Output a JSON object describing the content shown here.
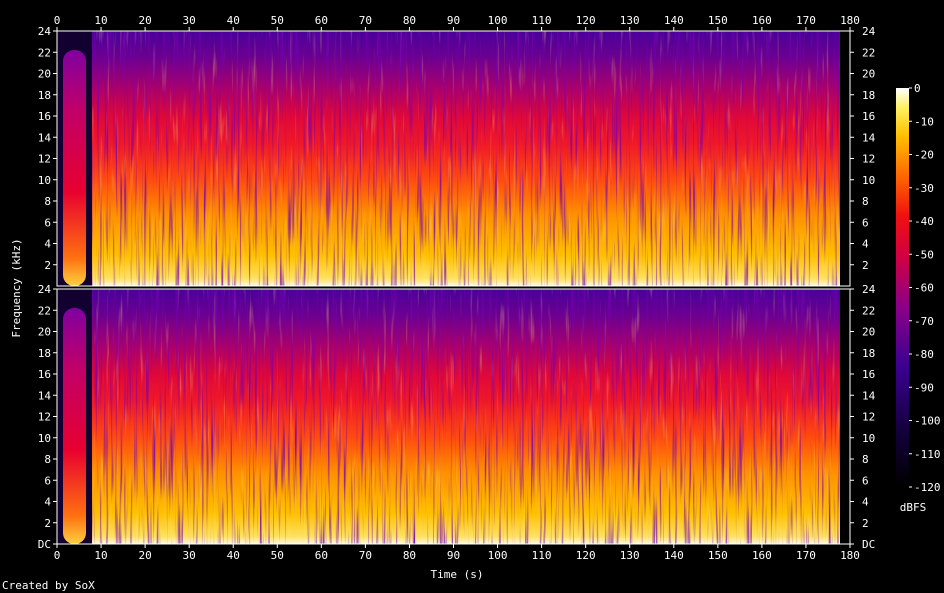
{
  "chart_data": {
    "type": "heatmap",
    "title": "",
    "xlabel": "Time (s)",
    "ylabel": "Frequency (kHz)",
    "xlim": [
      0,
      180
    ],
    "x_ticks": [
      0,
      10,
      20,
      30,
      40,
      50,
      60,
      70,
      80,
      90,
      100,
      110,
      120,
      130,
      140,
      150,
      160,
      170,
      180
    ],
    "channels": [
      {
        "name": "",
        "ylim": [
          0,
          24
        ],
        "y_ticks": [
          {
            "value": 2,
            "label": "2"
          },
          {
            "value": 4,
            "label": "4"
          },
          {
            "value": 6,
            "label": "6"
          },
          {
            "value": 8,
            "label": "8"
          },
          {
            "value": 10,
            "label": "10"
          },
          {
            "value": 12,
            "label": "12"
          },
          {
            "value": 14,
            "label": "14"
          },
          {
            "value": 16,
            "label": "16"
          },
          {
            "value": 18,
            "label": "18"
          },
          {
            "value": 20,
            "label": "20"
          },
          {
            "value": 22,
            "label": "22"
          },
          {
            "value": 24,
            "label": "24"
          }
        ]
      },
      {
        "name": "",
        "ylim": [
          0,
          24
        ],
        "y_ticks": [
          {
            "value": 0,
            "label": "DC"
          },
          {
            "value": 2,
            "label": "2"
          },
          {
            "value": 4,
            "label": "4"
          },
          {
            "value": 6,
            "label": "6"
          },
          {
            "value": 8,
            "label": "8"
          },
          {
            "value": 10,
            "label": "10"
          },
          {
            "value": 12,
            "label": "12"
          },
          {
            "value": 14,
            "label": "14"
          },
          {
            "value": 16,
            "label": "16"
          },
          {
            "value": 18,
            "label": "18"
          },
          {
            "value": 20,
            "label": "20"
          },
          {
            "value": 22,
            "label": "22"
          },
          {
            "value": 24,
            "label": "24"
          }
        ]
      }
    ],
    "colorbar": {
      "label": "dBFS",
      "range": [
        -120,
        0
      ],
      "ticks": [
        0,
        -10,
        -20,
        -30,
        -40,
        -50,
        -60,
        -70,
        -80,
        -90,
        -100,
        -110,
        -120
      ]
    },
    "grid": false,
    "legend": "none"
  },
  "footer": {
    "credit": "Created by SoX"
  },
  "colors": {
    "background": "#000000",
    "text": "#ffffff"
  }
}
